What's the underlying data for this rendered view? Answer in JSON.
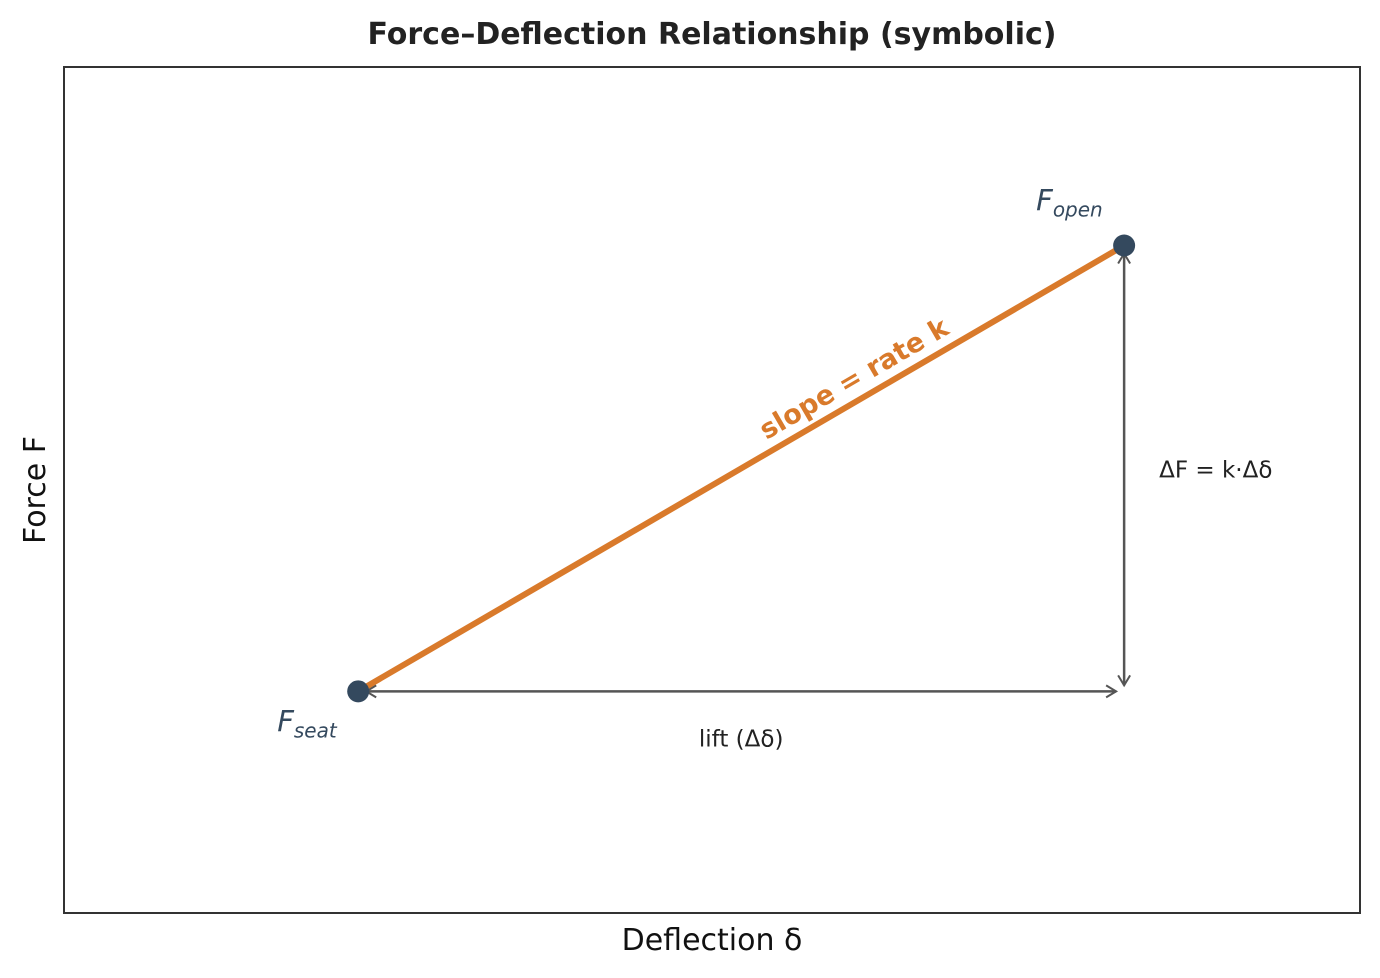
{
  "chart_data": {
    "type": "line",
    "title": "Force–Deflection Relationship (symbolic)",
    "xlabel": "Deflection  δ",
    "ylabel": "Force  F",
    "grid": false,
    "xlim": [
      0,
      10
    ],
    "ylim": [
      0,
      10
    ],
    "series": [
      {
        "color": "#d97a2b",
        "x": [
          2.27,
          8.18
        ],
        "y": [
          2.62,
          7.89
        ]
      }
    ],
    "points": [
      {
        "name": "seat",
        "label_main": "F",
        "label_sub": "seat",
        "x": 2.27,
        "y": 2.62,
        "color": "#34495e"
      },
      {
        "name": "open",
        "label_main": "F",
        "label_sub": "open",
        "x": 8.18,
        "y": 7.89,
        "color": "#34495e"
      }
    ],
    "annotations": {
      "slope": "slope = rate  k",
      "delta_f": "ΔF = k·Δδ",
      "lift": "lift (Δδ)"
    },
    "colors": {
      "line": "#d97a2b",
      "points": "#34495e",
      "arrows": "#555555",
      "frame": "#333333"
    }
  }
}
